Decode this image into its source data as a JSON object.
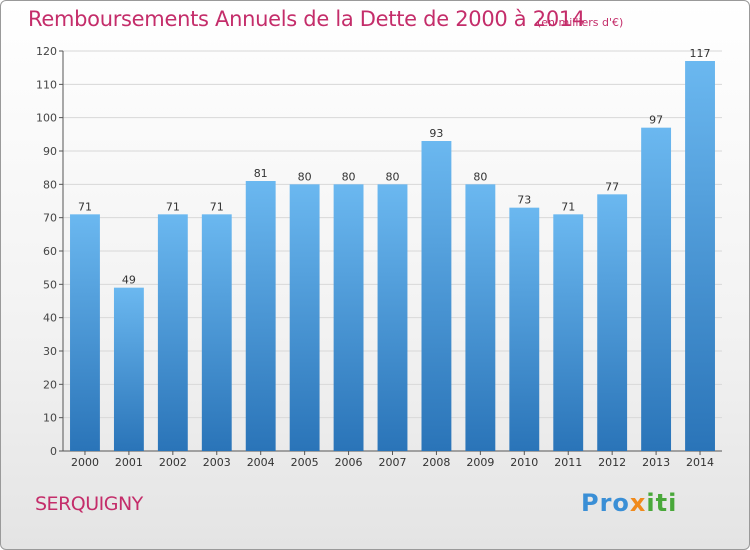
{
  "header": {
    "title": "Remboursements Annuels de la Dette de 2000 à 2014",
    "subtitle": "(en milliers d'€)"
  },
  "footer": {
    "town": "SERQUIGNY",
    "logo_parts": [
      "Pro",
      "x",
      "iti"
    ]
  },
  "colors": {
    "accent": "#c42d6a",
    "bar_top": "#6bb8f0",
    "bar_bottom": "#2a74b8",
    "grid": "#d8d8d8",
    "axis": "#555555"
  },
  "chart_data": {
    "type": "bar",
    "title": "Remboursements Annuels de la Dette de 2000 à 2014",
    "xlabel": "",
    "ylabel": "",
    "categories": [
      "2000",
      "2001",
      "2002",
      "2003",
      "2004",
      "2005",
      "2006",
      "2007",
      "2008",
      "2009",
      "2010",
      "2011",
      "2012",
      "2013",
      "2014"
    ],
    "values": [
      71,
      49,
      71,
      71,
      81,
      80,
      80,
      80,
      93,
      80,
      73,
      71,
      77,
      97,
      117
    ],
    "ylim": [
      0,
      120
    ],
    "yticks": [
      0,
      10,
      20,
      30,
      40,
      50,
      60,
      70,
      80,
      90,
      100,
      110,
      120
    ],
    "grid": true
  }
}
